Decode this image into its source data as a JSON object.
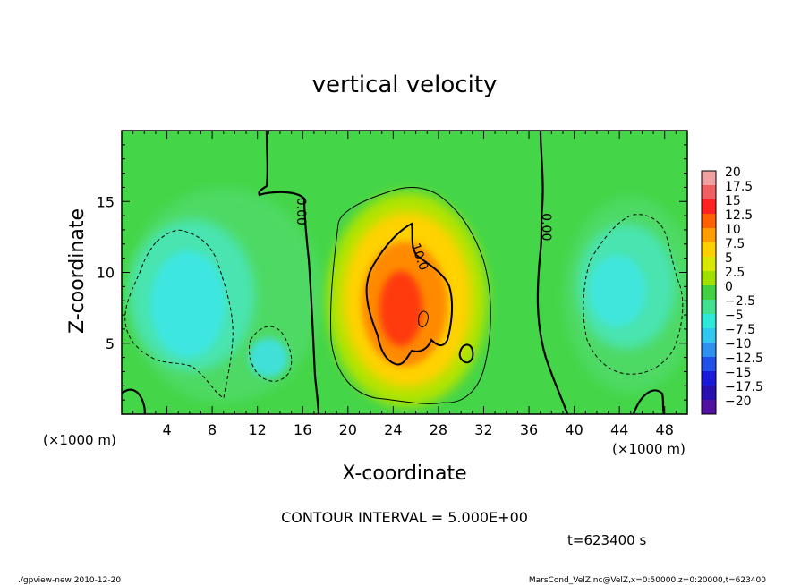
{
  "chart_data": {
    "type": "heatmap",
    "title": "vertical velocity",
    "xlabel": "X-coordinate",
    "ylabel": "Z-coordinate",
    "x_unit": "(×1000 m)",
    "y_unit": "(×1000 m)",
    "xlim": [
      0,
      50
    ],
    "ylim": [
      0,
      20
    ],
    "x_ticks": [
      "4",
      "8",
      "12",
      "16",
      "20",
      "24",
      "28",
      "32",
      "36",
      "40",
      "44",
      "48"
    ],
    "y_ticks": [
      "5",
      "10",
      "15"
    ],
    "colorbar_labels": [
      "20",
      "17.5",
      "15",
      "12.5",
      "10",
      "7.5",
      "5",
      "2.5",
      "0",
      "−2.5",
      "−5",
      "−7.5",
      "−10",
      "−12.5",
      "−15",
      "−17.5",
      "−20"
    ],
    "colorbar_colors": [
      "#f0a0a0",
      "#f06060",
      "#ff2020",
      "#ff6000",
      "#ff9c00",
      "#ffd000",
      "#d8e800",
      "#a0e000",
      "#40d040",
      "#40e090",
      "#30e8d8",
      "#30c8f0",
      "#3090f0",
      "#2050e8",
      "#1a1ad8",
      "#2a10b0",
      "#5010a0"
    ],
    "contour_labels": [
      {
        "text": "0.00",
        "x": 15.5,
        "z": 14.3
      },
      {
        "text": "10.0",
        "x": 26.0,
        "z": 11.0
      },
      {
        "text": "0.00",
        "x": 37.2,
        "z": 13.2
      }
    ],
    "contour_interval_text": "CONTOUR INTERVAL = 5.000E+00",
    "time_text": "t=623400 s",
    "footer_left": "./gpview-new  2010-12-20",
    "footer_right": "MarsCond_VelZ.nc@VelZ,x=0:50000,z=0:20000,t=623400",
    "colors": {
      "background": "#40d040"
    }
  }
}
